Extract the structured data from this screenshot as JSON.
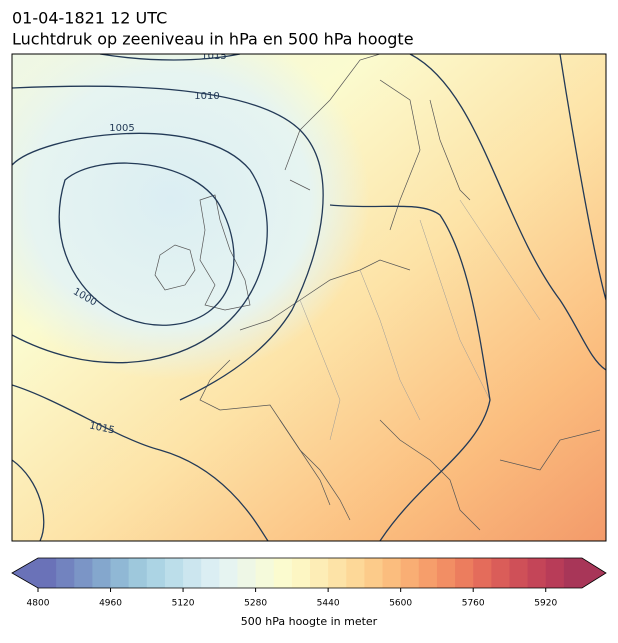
{
  "header": {
    "title": "01-04-1821 12 UTC",
    "subtitle": "Luchtdruk op zeeniveau in hPa en 500 hPa hoogte"
  },
  "map": {
    "isobar_labels": [
      "1015",
      "1010",
      "1005",
      "1000",
      "1015"
    ]
  },
  "colorbar": {
    "label": "500 hPa hoogte in meter",
    "lim": [
      4800,
      6000
    ],
    "ticks": [
      4800,
      4960,
      5120,
      5280,
      5440,
      5600,
      5760,
      5920
    ],
    "colors": [
      "#6a72b8",
      "#7283bf",
      "#7b95c6",
      "#84a7cd",
      "#90b8d5",
      "#9ec8dc",
      "#acd4e4",
      "#bcdeea",
      "#cce6ef",
      "#dbeef3",
      "#e6f4f1",
      "#eef7e6",
      "#f5fadb",
      "#fbfbcf",
      "#fdf6c3",
      "#fdedb6",
      "#fde3a7",
      "#fdd898",
      "#fccb8a",
      "#fbbd7e",
      "#f9ae74",
      "#f69e6b",
      "#f28e64",
      "#ec7d5e",
      "#e46c5b",
      "#da5d59",
      "#cf5058",
      "#c44558",
      "#b83c58",
      "#a83658"
    ]
  }
}
